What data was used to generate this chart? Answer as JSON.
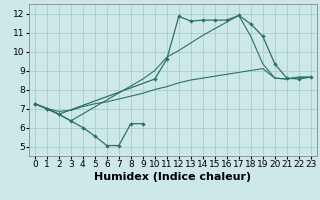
{
  "xlabel": "Humidex (Indice chaleur)",
  "bg_color": "#cce8e8",
  "grid_color": "#b0d0d0",
  "line_color": "#2d7068",
  "xlim": [
    -0.5,
    23.5
  ],
  "ylim": [
    4.5,
    12.5
  ],
  "xticks": [
    0,
    1,
    2,
    3,
    4,
    5,
    6,
    7,
    8,
    9,
    10,
    11,
    12,
    13,
    14,
    15,
    16,
    17,
    18,
    19,
    20,
    21,
    22,
    23
  ],
  "yticks": [
    5,
    6,
    7,
    8,
    9,
    10,
    11,
    12
  ],
  "line1_x": [
    0,
    1,
    2,
    3,
    4,
    5,
    6,
    7,
    8,
    9
  ],
  "line1_y": [
    7.25,
    7.0,
    6.7,
    6.35,
    6.0,
    5.55,
    5.05,
    5.05,
    6.2,
    6.2
  ],
  "line2_x": [
    0,
    1,
    2,
    10,
    11,
    12,
    13,
    14,
    15,
    16,
    17,
    18,
    19,
    20,
    21,
    22,
    23
  ],
  "line2_y": [
    7.25,
    7.0,
    6.7,
    8.55,
    9.6,
    11.85,
    11.6,
    11.65,
    11.65,
    11.65,
    11.9,
    11.45,
    10.8,
    9.35,
    8.6,
    8.55,
    8.65
  ],
  "line3_x": [
    0,
    1,
    2,
    3,
    4,
    5,
    6,
    7,
    8,
    9,
    10,
    11,
    12,
    13,
    14,
    15,
    16,
    17,
    18,
    19,
    20,
    21,
    22,
    23
  ],
  "line3_y": [
    7.25,
    7.0,
    6.85,
    6.9,
    7.1,
    7.25,
    7.35,
    7.5,
    7.65,
    7.8,
    8.0,
    8.15,
    8.35,
    8.5,
    8.6,
    8.7,
    8.8,
    8.9,
    9.0,
    9.1,
    8.6,
    8.55,
    8.65,
    8.65
  ],
  "line4_x": [
    0,
    2,
    3,
    9,
    10,
    11,
    12,
    13,
    14,
    15,
    16,
    17,
    18,
    19,
    20,
    21,
    22,
    23
  ],
  "line4_y": [
    7.25,
    6.7,
    6.35,
    8.55,
    9.0,
    9.7,
    10.05,
    10.45,
    10.85,
    11.2,
    11.55,
    11.9,
    10.8,
    9.35,
    8.6,
    8.55,
    8.65,
    8.65
  ],
  "xlabel_fontsize": 8,
  "tick_fontsize": 6.5
}
